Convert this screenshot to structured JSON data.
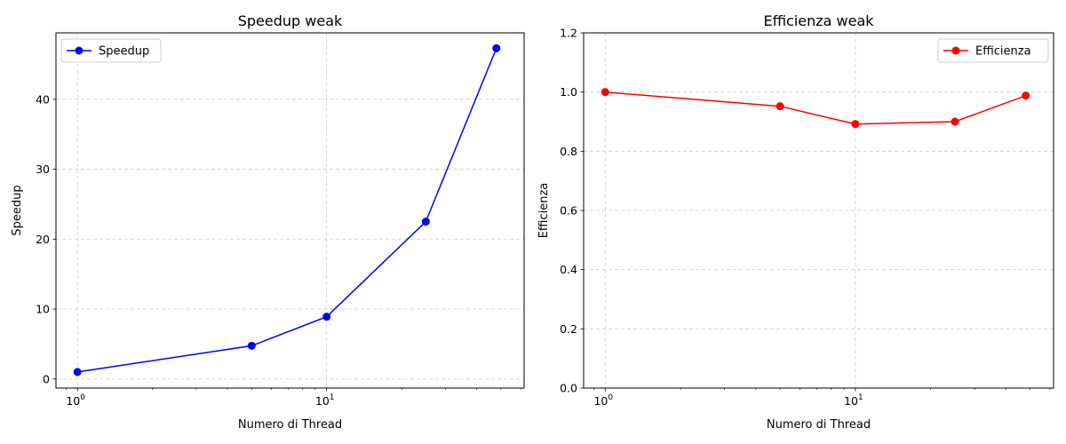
{
  "chart_data": [
    {
      "type": "line",
      "title": "Speedup weak",
      "xlabel": "Numero di Thread",
      "ylabel": "Speedup",
      "xscale": "log",
      "xlim": [
        0.82,
        62
      ],
      "ylim": [
        -1.3,
        49.5
      ],
      "x_ticks": [
        {
          "value": 1,
          "mantissa": "10",
          "exp": "0"
        },
        {
          "value": 10,
          "mantissa": "10",
          "exp": "1"
        }
      ],
      "y_ticks": [
        {
          "value": 0,
          "label": "0"
        },
        {
          "value": 10,
          "label": "10"
        },
        {
          "value": 20,
          "label": "20"
        },
        {
          "value": 30,
          "label": "30"
        },
        {
          "value": 40,
          "label": "40"
        }
      ],
      "grid": true,
      "legend_position": "top-left",
      "series": [
        {
          "name": "Speedup",
          "color": "#0000ff",
          "marker": "circle",
          "x": [
            1,
            5,
            10,
            25,
            48
          ],
          "values": [
            1.0,
            4.75,
            8.9,
            22.5,
            47.3
          ]
        }
      ]
    },
    {
      "type": "line",
      "title": "Efficienza weak",
      "xlabel": "Numero di Thread",
      "ylabel": "Efficienza",
      "xscale": "log",
      "xlim": [
        0.82,
        62
      ],
      "ylim": [
        0,
        1.2
      ],
      "x_ticks": [
        {
          "value": 1,
          "mantissa": "10",
          "exp": "0"
        },
        {
          "value": 10,
          "mantissa": "10",
          "exp": "1"
        }
      ],
      "y_ticks": [
        {
          "value": 0,
          "label": "0.0"
        },
        {
          "value": 0.2,
          "label": "0.2"
        },
        {
          "value": 0.4,
          "label": "0.4"
        },
        {
          "value": 0.6,
          "label": "0.6"
        },
        {
          "value": 0.8,
          "label": "0.8"
        },
        {
          "value": 1.0,
          "label": "1.0"
        },
        {
          "value": 1.2,
          "label": "1.2"
        }
      ],
      "grid": true,
      "legend_position": "top-right",
      "series": [
        {
          "name": "Efficienza",
          "color": "#ff0000",
          "marker": "circle",
          "x": [
            1,
            5,
            10,
            25,
            48
          ],
          "values": [
            1.0,
            0.952,
            0.892,
            0.9,
            0.988
          ]
        }
      ]
    }
  ]
}
